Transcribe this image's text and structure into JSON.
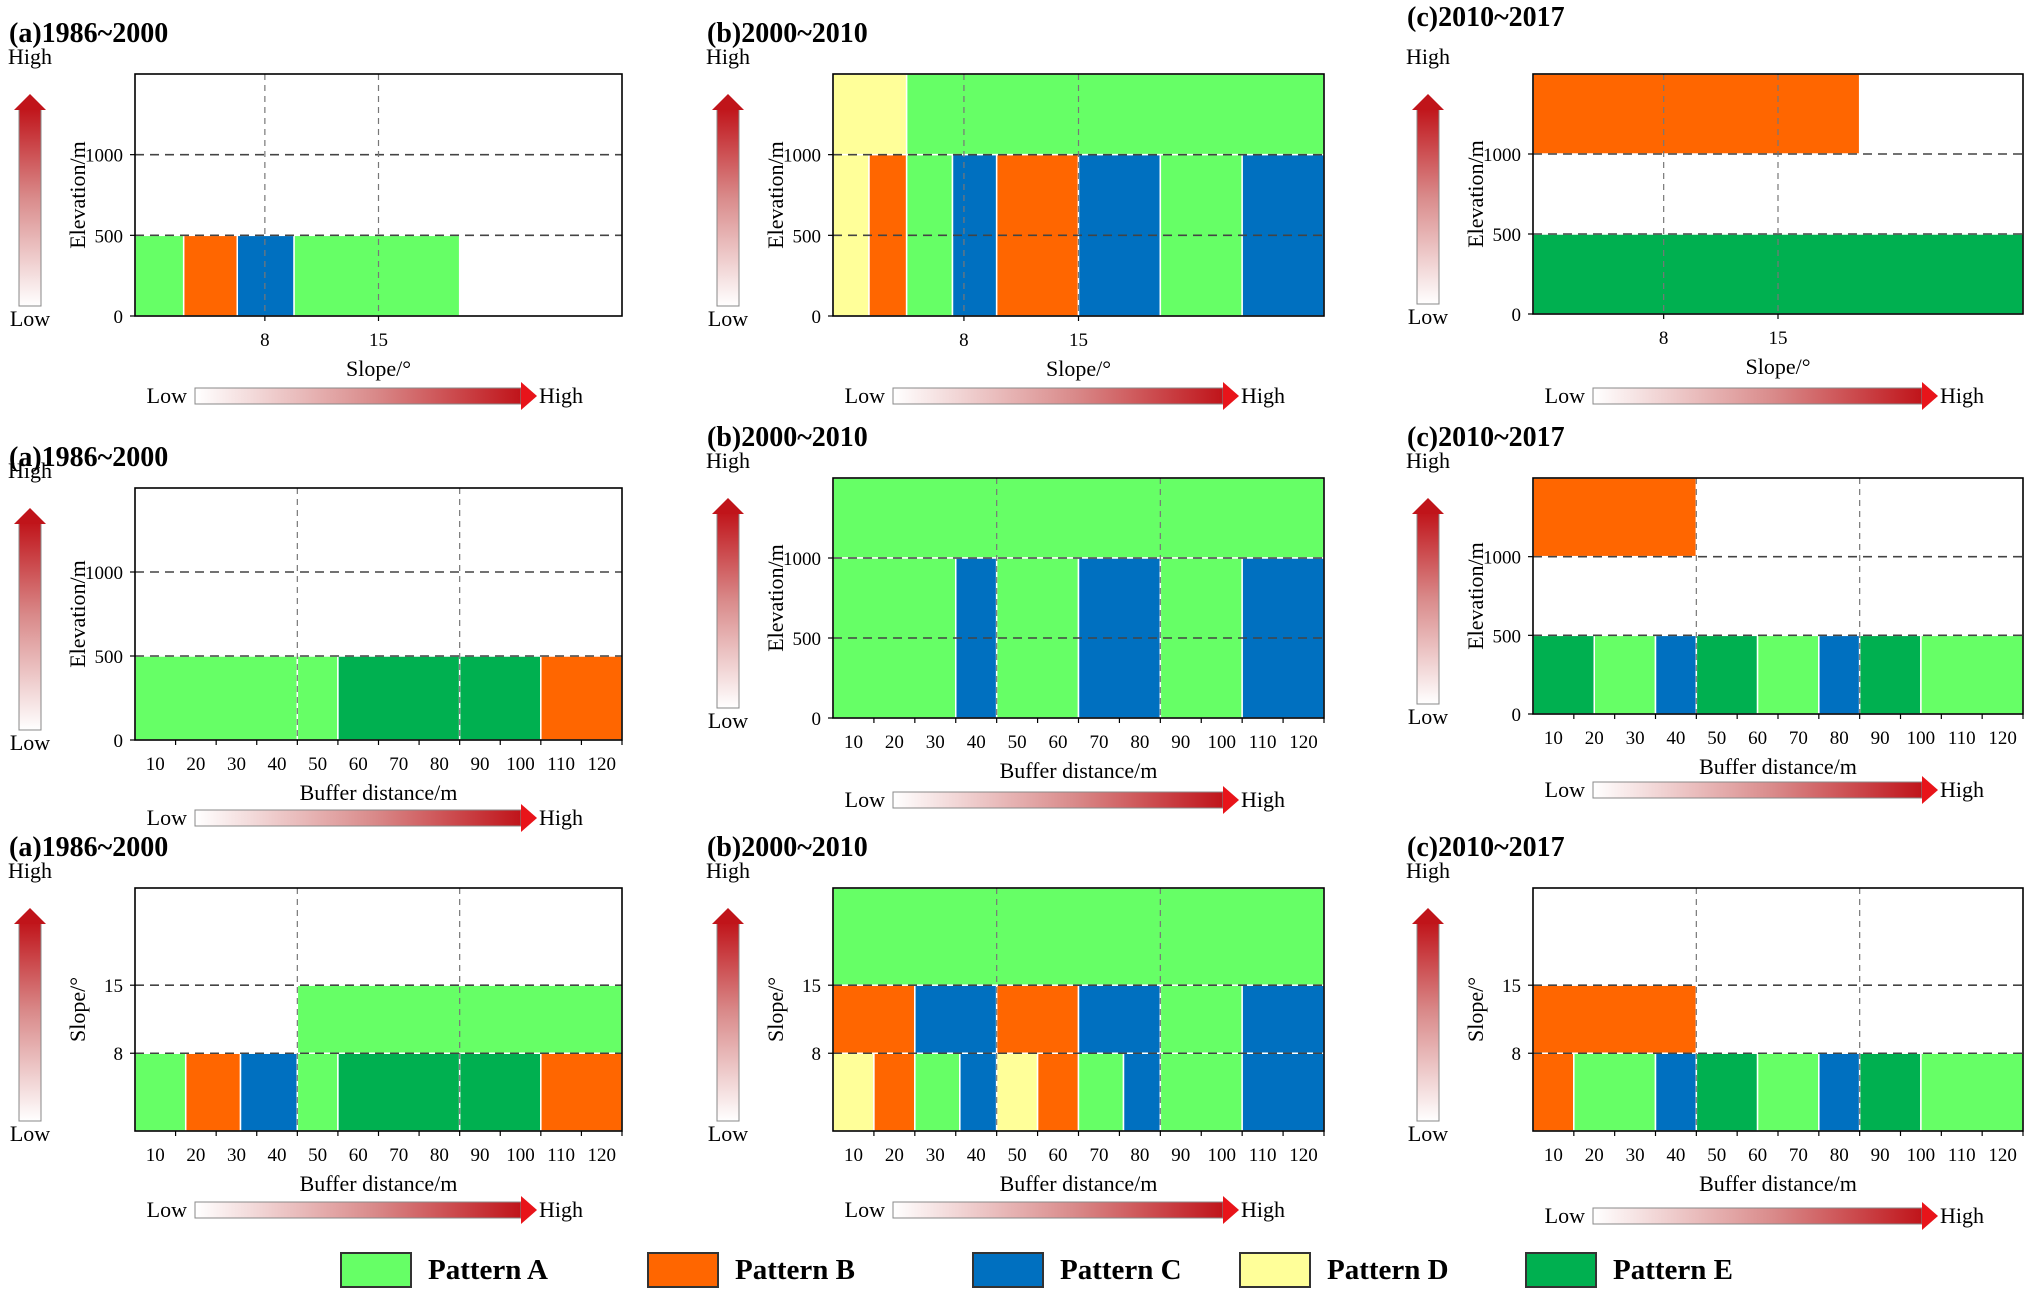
{
  "colors": {
    "A": "#66ff66",
    "B": "#ff6600",
    "C": "#0070c0",
    "D": "#ffff99",
    "E": "#00b050"
  },
  "legend": [
    {
      "key": "A",
      "label": "Pattern A"
    },
    {
      "key": "B",
      "label": "Pattern B"
    },
    {
      "key": "C",
      "label": "Pattern C"
    },
    {
      "key": "D",
      "label": "Pattern D"
    },
    {
      "key": "E",
      "label": "Pattern E"
    }
  ],
  "chart_data": [
    {
      "type": "heatmap",
      "title": "(a)1986~2000",
      "xlabel": "Slope/°",
      "ylabel": "Elevation/m",
      "xlim": [
        0,
        30
      ],
      "ylim": [
        0,
        1500
      ],
      "xticks": [
        8,
        15
      ],
      "xtick_labels": [
        "8",
        "15"
      ],
      "yticks": [
        0,
        500,
        1000
      ],
      "ytick_labels": [
        "0",
        "500",
        "1000"
      ],
      "ygrid": [
        500,
        1000
      ],
      "xgrid": [
        8,
        15
      ],
      "bottom_arrow": true,
      "arrow_low": "Low",
      "arrow_high": "High",
      "cells": [
        {
          "x0": 0,
          "x1": 3,
          "y0": 0,
          "y1": 500,
          "p": "A"
        },
        {
          "x0": 3,
          "x1": 6.3,
          "y0": 0,
          "y1": 500,
          "p": "B"
        },
        {
          "x0": 6.3,
          "x1": 9.8,
          "y0": 0,
          "y1": 500,
          "p": "C"
        },
        {
          "x0": 9.8,
          "x1": 20,
          "y0": 0,
          "y1": 500,
          "p": "A"
        }
      ]
    },
    {
      "type": "heatmap",
      "title": "(b)2000~2010",
      "xlabel": "Slope/°",
      "ylabel": "Elevation/m",
      "xlim": [
        0,
        30
      ],
      "ylim": [
        0,
        1500
      ],
      "xticks": [
        8,
        15
      ],
      "xtick_labels": [
        "8",
        "15"
      ],
      "yticks": [
        0,
        500,
        1000
      ],
      "ytick_labels": [
        "0",
        "500",
        "1000"
      ],
      "ygrid": [
        500,
        1000
      ],
      "xgrid": [
        8,
        15
      ],
      "bottom_arrow": true,
      "arrow_low": "Low",
      "arrow_high": "High",
      "cells": [
        {
          "x0": 0,
          "x1": 4.5,
          "y0": 1000,
          "y1": 1500,
          "p": "D"
        },
        {
          "x0": 4.5,
          "x1": 30,
          "y0": 1000,
          "y1": 1500,
          "p": "A"
        },
        {
          "x0": 0,
          "x1": 2.2,
          "y0": 0,
          "y1": 1000,
          "p": "D"
        },
        {
          "x0": 2.2,
          "x1": 4.5,
          "y0": 0,
          "y1": 1000,
          "p": "B"
        },
        {
          "x0": 4.5,
          "x1": 7.3,
          "y0": 0,
          "y1": 1000,
          "p": "A"
        },
        {
          "x0": 7.3,
          "x1": 10,
          "y0": 0,
          "y1": 1000,
          "p": "C"
        },
        {
          "x0": 10,
          "x1": 15,
          "y0": 0,
          "y1": 1000,
          "p": "B"
        },
        {
          "x0": 15,
          "x1": 20,
          "y0": 0,
          "y1": 1000,
          "p": "C"
        },
        {
          "x0": 20,
          "x1": 25,
          "y0": 0,
          "y1": 1000,
          "p": "A"
        },
        {
          "x0": 25,
          "x1": 30,
          "y0": 0,
          "y1": 1000,
          "p": "C"
        }
      ]
    },
    {
      "type": "heatmap",
      "title": "(c)2010~2017",
      "xlabel": "Slope/°",
      "ylabel": "Elevation/m",
      "xlim": [
        0,
        30
      ],
      "ylim": [
        0,
        1500
      ],
      "xticks": [
        8,
        15
      ],
      "xtick_labels": [
        "8",
        "15"
      ],
      "yticks": [
        0,
        500,
        1000
      ],
      "ytick_labels": [
        "0",
        "500",
        "1000"
      ],
      "ygrid": [
        500,
        1000
      ],
      "xgrid": [
        8,
        15
      ],
      "bottom_arrow": true,
      "arrow_low": "Low",
      "arrow_high": "High",
      "cells": [
        {
          "x0": 0,
          "x1": 20,
          "y0": 1000,
          "y1": 1500,
          "p": "B"
        },
        {
          "x0": 0,
          "x1": 30,
          "y0": 0,
          "y1": 500,
          "p": "E"
        }
      ]
    },
    {
      "type": "heatmap",
      "title": "(a)1986~2000",
      "xlabel": "Buffer distance/m",
      "ylabel": "Elevation/m",
      "xlim": [
        0,
        120
      ],
      "ylim": [
        0,
        1500
      ],
      "xticks": [
        10,
        20,
        30,
        40,
        50,
        60,
        70,
        80,
        90,
        100,
        110,
        120
      ],
      "xtick_labels": [
        "10",
        "20",
        "30",
        "40",
        "50",
        "60",
        "70",
        "80",
        "90",
        "100",
        "110",
        "120"
      ],
      "yticks": [
        0,
        500,
        1000
      ],
      "ytick_labels": [
        "0",
        "500",
        "1000"
      ],
      "ygrid": [
        500,
        1000
      ],
      "xgrid": [
        40,
        80
      ],
      "bottom_arrow": true,
      "arrow_low": "Low",
      "arrow_high": "High",
      "cells": [
        {
          "x0": 0,
          "x1": 40,
          "y0": 0,
          "y1": 500,
          "p": "A"
        },
        {
          "x0": 40,
          "x1": 50,
          "y0": 0,
          "y1": 500,
          "p": "A"
        },
        {
          "x0": 50,
          "x1": 80,
          "y0": 0,
          "y1": 500,
          "p": "E"
        },
        {
          "x0": 80,
          "x1": 100,
          "y0": 0,
          "y1": 500,
          "p": "E"
        },
        {
          "x0": 100,
          "x1": 120,
          "y0": 0,
          "y1": 500,
          "p": "B"
        }
      ]
    },
    {
      "type": "heatmap",
      "title": "(b)2000~2010",
      "xlabel": "Buffer distance/m",
      "ylabel": "Elevation/m",
      "xlim": [
        0,
        120
      ],
      "ylim": [
        0,
        1500
      ],
      "xticks": [
        10,
        20,
        30,
        40,
        50,
        60,
        70,
        80,
        90,
        100,
        110,
        120
      ],
      "xtick_labels": [
        "10",
        "20",
        "30",
        "40",
        "50",
        "60",
        "70",
        "80",
        "90",
        "100",
        "110",
        "120"
      ],
      "yticks": [
        0,
        500,
        1000
      ],
      "ytick_labels": [
        "0",
        "500",
        "1000"
      ],
      "ygrid": [
        500,
        1000
      ],
      "xgrid": [
        40,
        80
      ],
      "bottom_arrow": true,
      "arrow_low": "Low",
      "arrow_high": "High",
      "cells": [
        {
          "x0": 0,
          "x1": 120,
          "y0": 1000,
          "y1": 1500,
          "p": "A"
        },
        {
          "x0": 0,
          "x1": 30,
          "y0": 0,
          "y1": 1000,
          "p": "A"
        },
        {
          "x0": 30,
          "x1": 40,
          "y0": 0,
          "y1": 1000,
          "p": "C"
        },
        {
          "x0": 40,
          "x1": 60,
          "y0": 0,
          "y1": 1000,
          "p": "A"
        },
        {
          "x0": 60,
          "x1": 80,
          "y0": 0,
          "y1": 1000,
          "p": "C"
        },
        {
          "x0": 80,
          "x1": 100,
          "y0": 0,
          "y1": 1000,
          "p": "A"
        },
        {
          "x0": 100,
          "x1": 120,
          "y0": 0,
          "y1": 1000,
          "p": "C"
        }
      ]
    },
    {
      "type": "heatmap",
      "title": "(c)2010~2017",
      "xlabel": "Buffer distance/m",
      "ylabel": "Elevation/m",
      "xlim": [
        0,
        120
      ],
      "ylim": [
        0,
        1500
      ],
      "xticks": [
        10,
        20,
        30,
        40,
        50,
        60,
        70,
        80,
        90,
        100,
        110,
        120
      ],
      "xtick_labels": [
        "10",
        "20",
        "30",
        "40",
        "50",
        "60",
        "70",
        "80",
        "90",
        "100",
        "110",
        "120"
      ],
      "yticks": [
        0,
        500,
        1000
      ],
      "ytick_labels": [
        "0",
        "500",
        "1000"
      ],
      "ygrid": [
        500,
        1000
      ],
      "xgrid": [
        40,
        80
      ],
      "bottom_arrow": true,
      "arrow_low": "Low",
      "arrow_high": "High",
      "cells": [
        {
          "x0": 0,
          "x1": 40,
          "y0": 1000,
          "y1": 1500,
          "p": "B"
        },
        {
          "x0": 0,
          "x1": 15,
          "y0": 0,
          "y1": 500,
          "p": "E"
        },
        {
          "x0": 15,
          "x1": 30,
          "y0": 0,
          "y1": 500,
          "p": "A"
        },
        {
          "x0": 30,
          "x1": 40,
          "y0": 0,
          "y1": 500,
          "p": "C"
        },
        {
          "x0": 40,
          "x1": 55,
          "y0": 0,
          "y1": 500,
          "p": "E"
        },
        {
          "x0": 55,
          "x1": 70,
          "y0": 0,
          "y1": 500,
          "p": "A"
        },
        {
          "x0": 70,
          "x1": 80,
          "y0": 0,
          "y1": 500,
          "p": "C"
        },
        {
          "x0": 80,
          "x1": 95,
          "y0": 0,
          "y1": 500,
          "p": "E"
        },
        {
          "x0": 95,
          "x1": 120,
          "y0": 0,
          "y1": 500,
          "p": "A"
        }
      ]
    },
    {
      "type": "heatmap",
      "title": "(a)1986~2000",
      "xlabel": "Buffer distance/m",
      "ylabel": "Slope/°",
      "xlim": [
        0,
        120
      ],
      "ylim": [
        0,
        25
      ],
      "xticks": [
        10,
        20,
        30,
        40,
        50,
        60,
        70,
        80,
        90,
        100,
        110,
        120
      ],
      "xtick_labels": [
        "10",
        "20",
        "30",
        "40",
        "50",
        "60",
        "70",
        "80",
        "90",
        "100",
        "110",
        "120"
      ],
      "yticks": [
        8,
        15
      ],
      "ytick_labels": [
        "8",
        "15"
      ],
      "ygrid": [
        8,
        15
      ],
      "xgrid": [
        40,
        80
      ],
      "bottom_arrow": true,
      "arrow_low": "Low",
      "arrow_high": "High",
      "cells": [
        {
          "x0": 40,
          "x1": 120,
          "y0": 8,
          "y1": 15,
          "p": "A"
        },
        {
          "x0": 0,
          "x1": 12.5,
          "y0": 0,
          "y1": 8,
          "p": "A"
        },
        {
          "x0": 12.5,
          "x1": 26,
          "y0": 0,
          "y1": 8,
          "p": "B"
        },
        {
          "x0": 26,
          "x1": 40,
          "y0": 0,
          "y1": 8,
          "p": "C"
        },
        {
          "x0": 40,
          "x1": 50,
          "y0": 0,
          "y1": 8,
          "p": "A"
        },
        {
          "x0": 50,
          "x1": 80,
          "y0": 0,
          "y1": 8,
          "p": "E"
        },
        {
          "x0": 80,
          "x1": 100,
          "y0": 0,
          "y1": 8,
          "p": "E"
        },
        {
          "x0": 100,
          "x1": 120,
          "y0": 0,
          "y1": 8,
          "p": "B"
        }
      ]
    },
    {
      "type": "heatmap",
      "title": "(b)2000~2010",
      "xlabel": "Buffer distance/m",
      "ylabel": "Slope/°",
      "xlim": [
        0,
        120
      ],
      "ylim": [
        0,
        25
      ],
      "xticks": [
        10,
        20,
        30,
        40,
        50,
        60,
        70,
        80,
        90,
        100,
        110,
        120
      ],
      "xtick_labels": [
        "10",
        "20",
        "30",
        "40",
        "50",
        "60",
        "70",
        "80",
        "90",
        "100",
        "110",
        "120"
      ],
      "yticks": [
        8,
        15
      ],
      "ytick_labels": [
        "8",
        "15"
      ],
      "ygrid": [
        8,
        15
      ],
      "xgrid": [
        40,
        80
      ],
      "bottom_arrow": true,
      "arrow_low": "Low",
      "arrow_high": "High",
      "cells": [
        {
          "x0": 0,
          "x1": 120,
          "y0": 15,
          "y1": 25,
          "p": "A"
        },
        {
          "x0": 0,
          "x1": 20,
          "y0": 8,
          "y1": 15,
          "p": "B"
        },
        {
          "x0": 20,
          "x1": 40,
          "y0": 8,
          "y1": 15,
          "p": "C"
        },
        {
          "x0": 40,
          "x1": 60,
          "y0": 8,
          "y1": 15,
          "p": "B"
        },
        {
          "x0": 60,
          "x1": 80,
          "y0": 8,
          "y1": 15,
          "p": "C"
        },
        {
          "x0": 80,
          "x1": 100,
          "y0": 8,
          "y1": 15,
          "p": "A"
        },
        {
          "x0": 100,
          "x1": 120,
          "y0": 8,
          "y1": 15,
          "p": "C"
        },
        {
          "x0": 0,
          "x1": 10,
          "y0": 0,
          "y1": 8,
          "p": "D"
        },
        {
          "x0": 10,
          "x1": 20,
          "y0": 0,
          "y1": 8,
          "p": "B"
        },
        {
          "x0": 20,
          "x1": 31,
          "y0": 0,
          "y1": 8,
          "p": "A"
        },
        {
          "x0": 31,
          "x1": 40,
          "y0": 0,
          "y1": 8,
          "p": "C"
        },
        {
          "x0": 40,
          "x1": 50,
          "y0": 0,
          "y1": 8,
          "p": "D"
        },
        {
          "x0": 50,
          "x1": 60,
          "y0": 0,
          "y1": 8,
          "p": "B"
        },
        {
          "x0": 60,
          "x1": 71,
          "y0": 0,
          "y1": 8,
          "p": "A"
        },
        {
          "x0": 71,
          "x1": 80,
          "y0": 0,
          "y1": 8,
          "p": "C"
        },
        {
          "x0": 80,
          "x1": 100,
          "y0": 0,
          "y1": 8,
          "p": "A"
        },
        {
          "x0": 100,
          "x1": 120,
          "y0": 0,
          "y1": 8,
          "p": "C"
        }
      ]
    },
    {
      "type": "heatmap",
      "title": "(c)2010~2017",
      "xlabel": "Buffer distance/m",
      "ylabel": "Slope/°",
      "xlim": [
        0,
        120
      ],
      "ylim": [
        0,
        25
      ],
      "xticks": [
        10,
        20,
        30,
        40,
        50,
        60,
        70,
        80,
        90,
        100,
        110,
        120
      ],
      "xtick_labels": [
        "10",
        "20",
        "30",
        "40",
        "50",
        "60",
        "70",
        "80",
        "90",
        "100",
        "110",
        "120"
      ],
      "yticks": [
        8,
        15
      ],
      "ytick_labels": [
        "8",
        "15"
      ],
      "ygrid": [
        8,
        15
      ],
      "xgrid": [
        40,
        80
      ],
      "bottom_arrow": true,
      "arrow_low": "Low",
      "arrow_high": "High",
      "cells": [
        {
          "x0": 0,
          "x1": 40,
          "y0": 8,
          "y1": 15,
          "p": "B"
        },
        {
          "x0": 0,
          "x1": 10,
          "y0": 0,
          "y1": 8,
          "p": "B"
        },
        {
          "x0": 10,
          "x1": 30,
          "y0": 0,
          "y1": 8,
          "p": "A"
        },
        {
          "x0": 30,
          "x1": 40,
          "y0": 0,
          "y1": 8,
          "p": "C"
        },
        {
          "x0": 40,
          "x1": 55,
          "y0": 0,
          "y1": 8,
          "p": "E"
        },
        {
          "x0": 55,
          "x1": 70,
          "y0": 0,
          "y1": 8,
          "p": "A"
        },
        {
          "x0": 70,
          "x1": 80,
          "y0": 0,
          "y1": 8,
          "p": "C"
        },
        {
          "x0": 80,
          "x1": 95,
          "y0": 0,
          "y1": 8,
          "p": "E"
        },
        {
          "x0": 95,
          "x1": 120,
          "y0": 0,
          "y1": 8,
          "p": "A"
        }
      ]
    }
  ],
  "vertical_arrow": {
    "high": "High",
    "low": "Low"
  }
}
